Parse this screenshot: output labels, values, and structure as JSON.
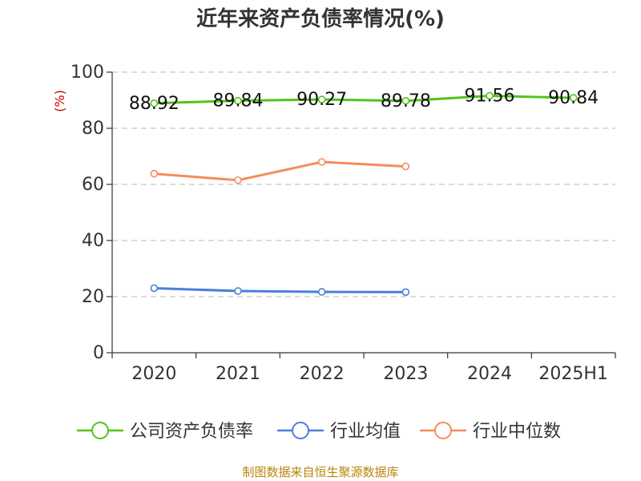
{
  "chart_data": {
    "type": "line",
    "title": "近年来资产负债率情况(%)",
    "y_unit": "(%)",
    "categories": [
      "2020",
      "2021",
      "2022",
      "2023",
      "2024",
      "2025H1"
    ],
    "ylim": [
      0,
      100
    ],
    "yticks": [
      0,
      20,
      40,
      60,
      80,
      100
    ],
    "grid": true,
    "legend_position": "bottom",
    "series": [
      {
        "name": "公司资产负债率",
        "color": "#52c41a",
        "values": [
          88.92,
          89.84,
          90.27,
          89.78,
          91.56,
          90.84
        ],
        "labels": [
          "88.92",
          "89.84",
          "90.27",
          "89.78",
          "91.56",
          "90.84"
        ]
      },
      {
        "name": "行业均值",
        "color": "#4a7fdb",
        "values": [
          23.0,
          22.0,
          21.7,
          21.6,
          null,
          null
        ]
      },
      {
        "name": "行业中位数",
        "color": "#f28e5c",
        "values": [
          63.8,
          61.5,
          68.0,
          66.4,
          null,
          null
        ]
      }
    ],
    "source": "制图数据来自恒生聚源数据库"
  }
}
